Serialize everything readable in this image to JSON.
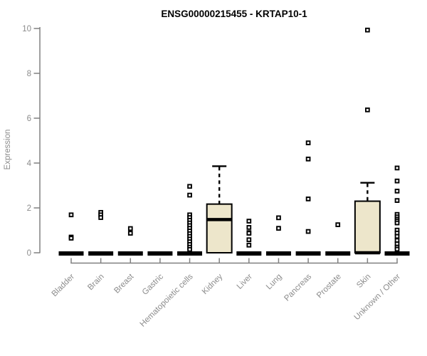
{
  "chart_data": {
    "type": "boxplot",
    "title": "ENSG00000215455 - KRTAP10-1",
    "ylabel": "Expression",
    "xlabel": "",
    "ylim": [
      0,
      10
    ],
    "yticks": [
      0,
      2,
      4,
      6,
      8,
      10
    ],
    "grid": false,
    "legend": false,
    "colors": {
      "box_fill": "#EDE6CB",
      "box_border": "#000000",
      "median": "#000000",
      "outlier": "#000000",
      "axis_line": "#808080",
      "axis_text": "#8C8C8C",
      "title_text": "#000000",
      "background": "#FFFFFF"
    },
    "categories": [
      {
        "label": "Bladder",
        "q1": 0,
        "median": 0,
        "q3": 0,
        "whisker_low": 0,
        "whisker_high": 0,
        "outliers": [
          1.69,
          0.7,
          0.65
        ]
      },
      {
        "label": "Brain",
        "q1": 0,
        "median": 0,
        "q3": 0,
        "whisker_low": 0,
        "whisker_high": 0,
        "outliers": [
          1.8,
          1.69,
          1.57
        ]
      },
      {
        "label": "Breast",
        "q1": 0,
        "median": 0,
        "q3": 0,
        "whisker_low": 0,
        "whisker_high": 0,
        "outliers": [
          1.08,
          0.87
        ]
      },
      {
        "label": "Gastric",
        "q1": 0,
        "median": 0,
        "q3": 0,
        "whisker_low": 0,
        "whisker_high": 0,
        "outliers": []
      },
      {
        "label": "Hematopoietic cells",
        "q1": 0,
        "median": 0,
        "q3": 0,
        "whisker_low": 0,
        "whisker_high": 0,
        "outliers": [
          2.96,
          2.57,
          1.69,
          1.57,
          1.45,
          1.33,
          1.21,
          1.09,
          0.97,
          0.85,
          0.73,
          0.61,
          0.49,
          0.37,
          0.25,
          0.15
        ]
      },
      {
        "label": "Kidney",
        "q1": 0,
        "median": 1.48,
        "q3": 2.17,
        "whisker_low": 0,
        "whisker_high": 3.86,
        "outliers": []
      },
      {
        "label": "Liver",
        "q1": 0,
        "median": 0,
        "q3": 0,
        "whisker_low": 0,
        "whisker_high": 0,
        "outliers": [
          1.41,
          1.13,
          0.9,
          0.87,
          0.58,
          0.34
        ]
      },
      {
        "label": "Lung",
        "q1": 0,
        "median": 0,
        "q3": 0,
        "whisker_low": 0,
        "whisker_high": 0,
        "outliers": [
          1.56,
          1.09
        ]
      },
      {
        "label": "Pancreas",
        "q1": 0,
        "median": 0,
        "q3": 0,
        "whisker_low": 0,
        "whisker_high": 0,
        "outliers": [
          4.9,
          4.18,
          2.4,
          0.95
        ]
      },
      {
        "label": "Prostate",
        "q1": 0,
        "median": 0,
        "q3": 0,
        "whisker_low": 0,
        "whisker_high": 0,
        "outliers": [
          1.25
        ]
      },
      {
        "label": "Skin",
        "q1": 0,
        "median": 0,
        "q3": 2.3,
        "whisker_low": 0,
        "whisker_high": 3.12,
        "outliers": [
          9.93,
          6.37
        ]
      },
      {
        "label": "Unknown / Other",
        "q1": 0,
        "median": 0,
        "q3": 0,
        "whisker_low": 0,
        "whisker_high": 0,
        "outliers": [
          3.78,
          3.2,
          2.75,
          2.33,
          1.71,
          1.6,
          1.5,
          1.42,
          1.33,
          1.01,
          0.88,
          0.73,
          0.55,
          0.4,
          0.25,
          0.16
        ]
      }
    ]
  }
}
